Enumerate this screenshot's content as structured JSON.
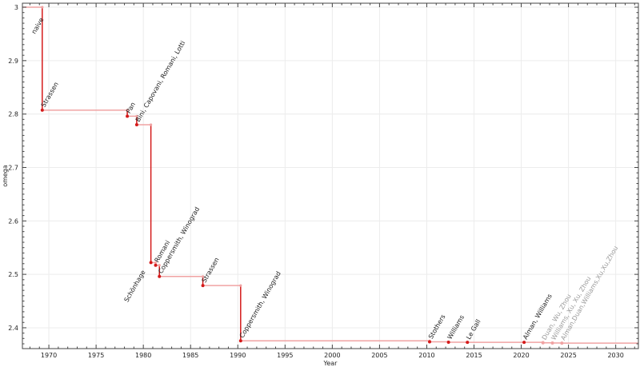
{
  "chart_data": {
    "type": "line",
    "step": true,
    "title": "",
    "xlabel": "Year",
    "ylabel": "omega",
    "xlim": [
      1967.2,
      2032.4
    ],
    "ylim": [
      2.361,
      3.0075
    ],
    "xticks": [
      1970,
      1975,
      1980,
      1985,
      1990,
      1995,
      2000,
      2005,
      2010,
      2015,
      2020,
      2025,
      2030
    ],
    "yticks": [
      2.4,
      2.5,
      2.6,
      2.7,
      2.8,
      2.9,
      3
    ],
    "ytick_labels": [
      "2.4",
      "2.5",
      "2.6",
      "2.7",
      "2.8",
      "2.9",
      "3"
    ],
    "grid": true,
    "colors": {
      "line": "#d41a1a",
      "line_light": "#f0a3a3",
      "label": "#222222",
      "label_light": "#9a9a9a"
    },
    "points": [
      {
        "label": "naive",
        "x": 1967.2,
        "y": 3.0,
        "confirmed": true
      },
      {
        "label": "Strassen",
        "x": 1969.3,
        "y": 2.8074,
        "confirmed": true
      },
      {
        "label": "Pan",
        "x": 1978.3,
        "y": 2.796,
        "confirmed": true
      },
      {
        "label": "Bini, Capovani, Romani, Lotti",
        "x": 1979.3,
        "y": 2.78,
        "confirmed": true
      },
      {
        "label": "Schönhage",
        "x": 1980.8,
        "y": 2.522,
        "confirmed": true
      },
      {
        "label": "Romani",
        "x": 1981.3,
        "y": 2.517,
        "confirmed": true
      },
      {
        "label": "Coppersmith, Winograd",
        "x": 1981.7,
        "y": 2.496,
        "confirmed": true
      },
      {
        "label": "Strassen",
        "x": 1986.3,
        "y": 2.479,
        "confirmed": true
      },
      {
        "label": "Coppersmith, Winograd",
        "x": 1990.3,
        "y": 2.3755,
        "confirmed": true
      },
      {
        "label": "Stothers",
        "x": 2010.3,
        "y": 2.3737,
        "confirmed": true
      },
      {
        "label": "Williams",
        "x": 2012.3,
        "y": 2.3729,
        "confirmed": true
      },
      {
        "label": "Le Gall",
        "x": 2014.3,
        "y": 2.37286,
        "confirmed": true
      },
      {
        "label": "Alman, Williams",
        "x": 2020.3,
        "y": 2.37286,
        "confirmed": true
      },
      {
        "label": "Duan, Wu, Zhou",
        "x": 2022.3,
        "y": 2.37187,
        "confirmed": false
      },
      {
        "label": "Williams, Xu, Xu, Zhou",
        "x": 2023.3,
        "y": 2.37155,
        "confirmed": false
      },
      {
        "label": "Alman,Duan,Williams,Xu,Xu,Zhou",
        "x": 2024.3,
        "y": 2.37134,
        "confirmed": false
      }
    ]
  }
}
